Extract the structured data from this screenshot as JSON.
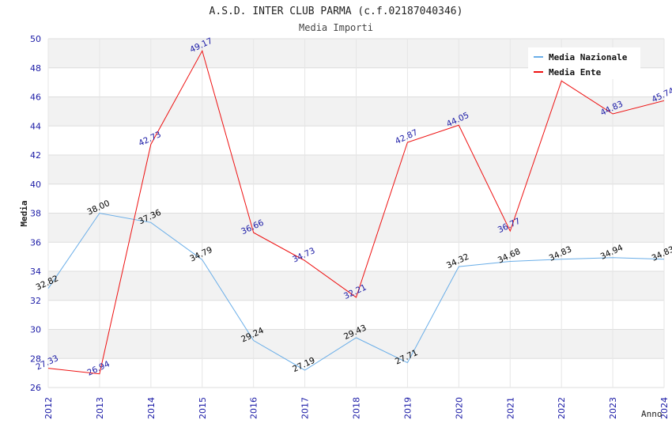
{
  "chart_data": {
    "type": "line",
    "title": "A.S.D. INTER CLUB PARMA (c.f.02187040346)",
    "subtitle": "Media Importi",
    "ylabel": "Media",
    "xlabel": "Anno",
    "x": [
      "2012",
      "2013",
      "2014",
      "2015",
      "2016",
      "2017",
      "2018",
      "2019",
      "2020",
      "2021",
      "2022",
      "2023",
      "2024"
    ],
    "ylim": [
      26,
      50
    ],
    "yticks": [
      26,
      28,
      30,
      32,
      34,
      36,
      38,
      40,
      42,
      44,
      46,
      48,
      50
    ],
    "grid": true,
    "legend_position": "top-right",
    "series": [
      {
        "name": "Media Nazionale",
        "color": "#6aaee8",
        "label_color": "#000000",
        "values": [
          32.82,
          38.0,
          37.36,
          34.79,
          29.24,
          27.19,
          29.43,
          27.71,
          34.32,
          34.68,
          34.83,
          34.94,
          34.83
        ],
        "labels": [
          "32.82",
          "38.00",
          "37.36",
          "34.79",
          "29.24",
          "27.19",
          "29.43",
          "27.71",
          "34.32",
          "34.68",
          "34.83",
          "34.94",
          "34.83"
        ]
      },
      {
        "name": "Media Ente",
        "color": "#ee1111",
        "label_color": "#1a1aa6",
        "values": [
          27.33,
          26.94,
          42.73,
          49.17,
          36.66,
          34.73,
          32.21,
          42.87,
          44.05,
          36.77,
          47.1,
          44.83,
          45.74
        ],
        "labels": [
          "27.33",
          "26.94",
          "42.73",
          "49.17",
          "36.66",
          "34.73",
          "32.21",
          "42.87",
          "44.05",
          "36.77",
          "",
          "44.83",
          "45.74"
        ]
      }
    ]
  }
}
